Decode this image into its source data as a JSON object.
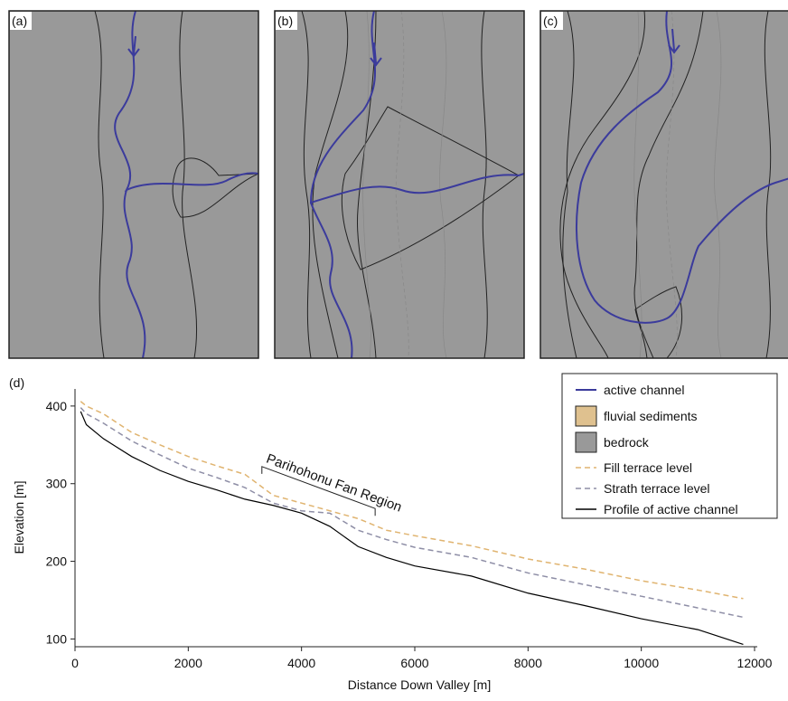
{
  "panels": [
    "(a)",
    "(b)",
    "(c)"
  ],
  "chart_data": {
    "type": "line",
    "panel_label": "(d)",
    "x_label": "Distance Down Valley [m]",
    "y_label": "Elevation [m]",
    "x": [
      100,
      200,
      500,
      1000,
      1500,
      2000,
      2500,
      3000,
      3500,
      4000,
      4500,
      5000,
      5500,
      6000,
      7000,
      8000,
      9000,
      10000,
      11000,
      11800
    ],
    "series": [
      {
        "name": "Fill terrace level",
        "color": "#e0b470",
        "dash": true,
        "values": [
          406,
          400,
          390,
          366,
          350,
          335,
          323,
          312,
          285,
          275,
          265,
          255,
          240,
          233,
          220,
          203,
          190,
          175,
          163,
          152
        ]
      },
      {
        "name": "Strath terrace level",
        "color": "#8e8ea6",
        "dash": true,
        "values": [
          398,
          390,
          378,
          355,
          337,
          320,
          308,
          295,
          275,
          265,
          262,
          240,
          228,
          218,
          205,
          185,
          170,
          155,
          140,
          128
        ]
      },
      {
        "name": "Profile of active channel",
        "color": "#000000",
        "dash": false,
        "values": [
          393,
          376,
          358,
          335,
          317,
          303,
          292,
          280,
          272,
          262,
          245,
          219,
          205,
          194,
          181,
          159,
          143,
          126,
          112,
          93
        ]
      }
    ],
    "map_legend": [
      {
        "name": "active channel",
        "color": "#3b3b9c",
        "kind": "line"
      },
      {
        "name": "fluvial sediments",
        "color": "#dfc18f",
        "kind": "box"
      },
      {
        "name": "bedrock",
        "color": "#999999",
        "kind": "box"
      }
    ],
    "annotation": {
      "text": "Parihohonu Fan Region",
      "x": [
        3300,
        5300
      ]
    },
    "xlim": [
      0,
      12000
    ],
    "xticks": [
      0,
      2000,
      4000,
      6000,
      8000,
      10000,
      12000
    ],
    "ylim": [
      90,
      422
    ],
    "yticks": [
      100,
      200,
      300,
      400
    ]
  }
}
